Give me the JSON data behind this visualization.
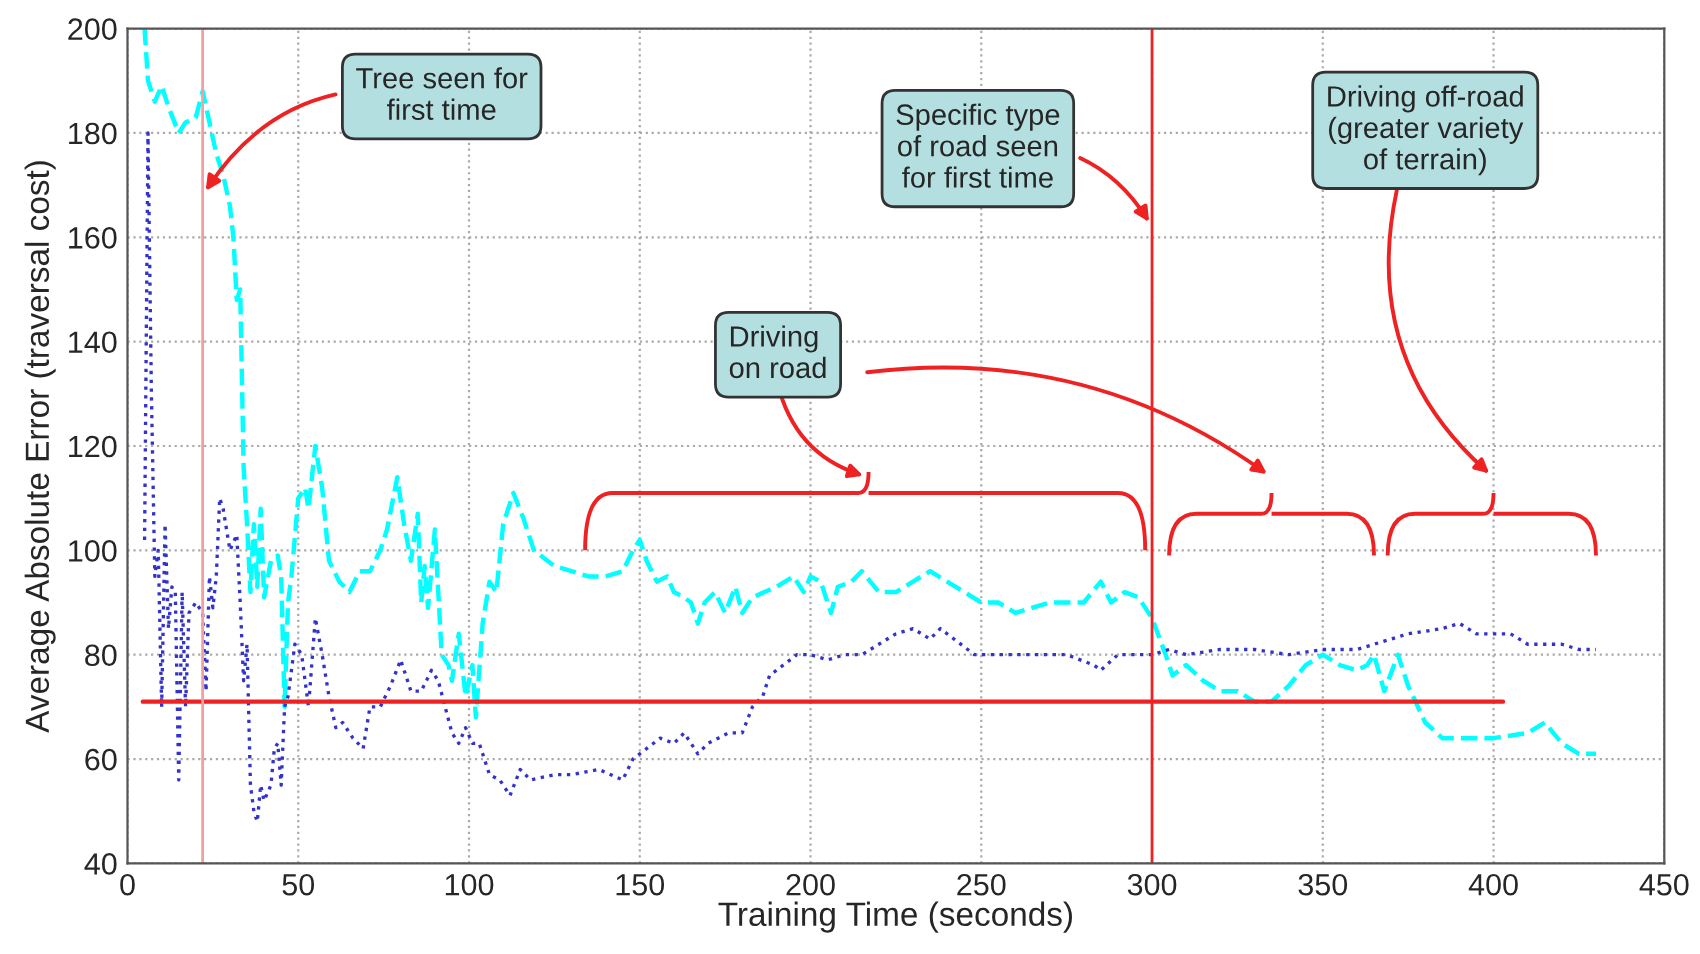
{
  "chart_data": {
    "type": "line",
    "xlabel": "Training Time (seconds)",
    "ylabel": "Average Absolute Error (traversal cost)",
    "xlim": [
      0,
      450
    ],
    "xticks": [
      0,
      50,
      100,
      150,
      200,
      250,
      300,
      350,
      400,
      450
    ],
    "ylim": [
      40,
      200
    ],
    "yticks": [
      40,
      60,
      80,
      100,
      120,
      140,
      160,
      180,
      200
    ],
    "grid": true,
    "series": [
      {
        "color": "#00ffff",
        "line_style": "dashed",
        "x": [
          5,
          6,
          8,
          10,
          12,
          15,
          17,
          20,
          22,
          24,
          26,
          28,
          30,
          31,
          32,
          33,
          34,
          35,
          36,
          37,
          38,
          39,
          40,
          42,
          44,
          45,
          46,
          47,
          48,
          50,
          52,
          53,
          55,
          57,
          59,
          62,
          65,
          68,
          71,
          74,
          76,
          79,
          81,
          83,
          85,
          86,
          87,
          88,
          90,
          91,
          92,
          94,
          95,
          97,
          99,
          101,
          102,
          104,
          106,
          108,
          110,
          113,
          116,
          119,
          125,
          130,
          135,
          140,
          145,
          148,
          150,
          152,
          155,
          158,
          160,
          163,
          165,
          167,
          169,
          172,
          175,
          178,
          180,
          183,
          190,
          195,
          198,
          200,
          203,
          206,
          208,
          212,
          215,
          220,
          225,
          230,
          235,
          240,
          245,
          250,
          255,
          260,
          265,
          270,
          280,
          285,
          288,
          292,
          296,
          300,
          304,
          306,
          310,
          315,
          320,
          325,
          330,
          335,
          340,
          345,
          350,
          355,
          360,
          363,
          365,
          368,
          372,
          375,
          380,
          385,
          390,
          400,
          410,
          415,
          420,
          425,
          430
        ],
        "values": [
          200,
          190,
          186,
          189,
          185,
          180,
          182,
          183,
          188,
          182,
          176,
          172,
          166,
          160,
          148,
          150,
          116,
          105,
          92,
          105,
          93,
          108,
          91,
          98,
          99,
          95,
          70,
          90,
          95,
          110,
          112,
          108,
          120,
          112,
          98,
          94,
          92,
          96,
          96,
          100,
          104,
          114,
          105,
          98,
          107,
          90,
          97,
          89,
          104,
          92,
          80,
          78,
          75,
          84,
          72,
          78,
          68,
          86,
          94,
          92,
          105,
          111,
          106,
          100,
          97,
          96,
          95,
          95,
          96,
          100,
          102,
          98,
          94,
          95,
          92,
          91,
          90,
          86,
          90,
          92,
          88,
          93,
          88,
          91,
          93,
          95,
          92,
          95,
          94,
          88,
          93,
          94,
          96,
          92,
          92,
          94,
          96,
          94,
          92,
          90,
          90,
          88,
          89,
          90,
          90,
          94,
          90,
          92,
          91,
          87,
          80,
          76,
          78,
          75,
          73,
          73,
          71,
          71,
          74,
          78,
          80,
          78,
          77,
          78,
          80,
          73,
          80,
          74,
          67,
          64,
          64,
          64,
          65,
          67,
          63,
          61,
          61
        ]
      },
      {
        "color": "#3333cc",
        "line_style": "dotted",
        "x": [
          5,
          6,
          7,
          8,
          9,
          10,
          11,
          12,
          13,
          14,
          15,
          16,
          17,
          18,
          20,
          22,
          23,
          24,
          25,
          26,
          27,
          28,
          30,
          32,
          33,
          34,
          35,
          36,
          37,
          38,
          39,
          40,
          42,
          43,
          44,
          45,
          46,
          47,
          49,
          51,
          53,
          55,
          57,
          59,
          61,
          63,
          66,
          69,
          71,
          74,
          77,
          80,
          83,
          86,
          89,
          91,
          93,
          95,
          97,
          99,
          101,
          103,
          106,
          109,
          112,
          115,
          118,
          125,
          130,
          138,
          145,
          148,
          152,
          156,
          160,
          163,
          167,
          170,
          173,
          176,
          180,
          183,
          186,
          188,
          192,
          196,
          200,
          205,
          210,
          215,
          220,
          225,
          230,
          235,
          238,
          242,
          248,
          255,
          265,
          275,
          283,
          285,
          290,
          300,
          305,
          310,
          320,
          330,
          340,
          350,
          360,
          370,
          375,
          385,
          390,
          395,
          400,
          405,
          410,
          420,
          425,
          430
        ],
        "values": [
          102,
          180,
          130,
          95,
          100,
          70,
          105,
          85,
          93,
          92,
          56,
          92,
          70,
          88,
          90,
          88,
          73,
          95,
          89,
          95,
          110,
          108,
          100,
          103,
          90,
          75,
          82,
          55,
          50,
          48,
          55,
          52,
          55,
          62,
          63,
          55,
          70,
          72,
          82,
          80,
          70,
          87,
          80,
          72,
          66,
          67,
          64,
          62,
          70,
          70,
          74,
          79,
          73,
          73,
          77,
          75,
          70,
          65,
          63,
          66,
          63,
          63,
          57,
          56,
          53,
          58,
          56,
          57,
          57,
          58,
          56,
          60,
          62,
          64,
          63,
          65,
          61,
          63,
          64,
          65,
          65,
          70,
          72,
          76,
          78,
          80,
          80,
          79,
          80,
          80,
          82,
          84,
          85,
          83,
          85,
          83,
          80,
          80,
          80,
          80,
          78,
          77,
          80,
          80,
          81,
          80,
          81,
          81,
          80,
          81,
          81,
          83,
          84,
          85,
          86,
          84,
          84,
          84,
          82,
          82,
          81,
          81
        ]
      }
    ],
    "ref_lines": [
      {
        "axis": "y",
        "value": 71,
        "color": "#ee2222"
      },
      {
        "axis": "x",
        "value": 22,
        "color": "#f0a0a0"
      },
      {
        "axis": "x",
        "value": 300,
        "color": "#ee2222"
      }
    ],
    "annotations": [
      {
        "text": "Tree seen for\nfirst time",
        "x": 22,
        "y": 168
      },
      {
        "text": "Specific type\nof road seen\nfor first time",
        "x": 300,
        "y": 162
      },
      "Driving\non road",
      "Driving off-road\n(greater variety\nof terrain)"
    ]
  }
}
